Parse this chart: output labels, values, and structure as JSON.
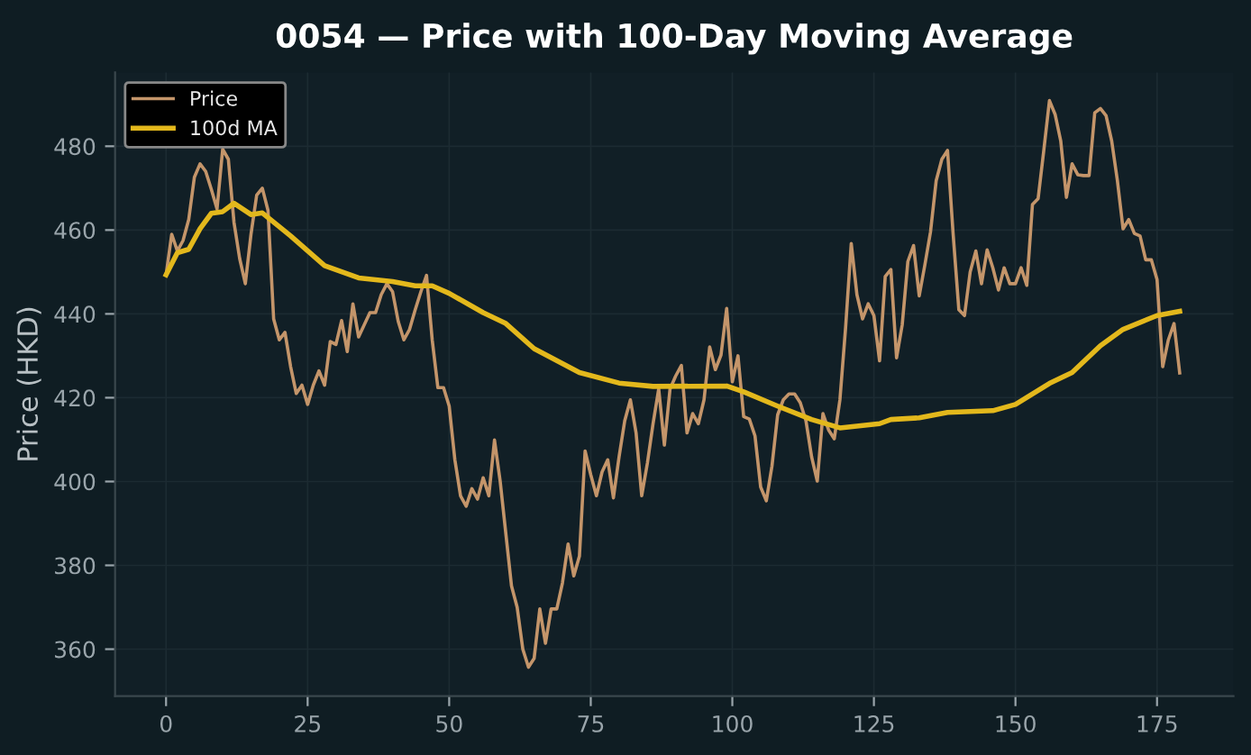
{
  "chart_data": {
    "type": "line",
    "title": "0054 — Price with 100-Day Moving Average",
    "ylabel": "Price (HKD)",
    "xlim": [
      -9,
      188.5
    ],
    "xticks": [
      0,
      25,
      50,
      75,
      100,
      125,
      150,
      175
    ],
    "ylim": [
      348.8,
      497.6
    ],
    "yticks": [
      360,
      380,
      400,
      420,
      440,
      460,
      480
    ],
    "grid": true,
    "legend": "top left",
    "series": [
      {
        "name": "Price",
        "color": "#c4956a",
        "x": [
          0,
          1,
          2,
          3,
          4,
          5,
          6,
          7,
          8,
          9,
          10,
          11,
          12,
          13,
          14,
          15,
          16,
          17,
          18,
          19,
          20,
          21,
          22,
          23,
          24,
          25,
          26,
          27,
          28,
          29,
          30,
          31,
          32,
          33,
          34,
          35,
          36,
          37,
          38,
          39,
          40,
          41,
          42,
          43,
          44,
          45,
          46,
          47,
          48,
          49,
          50,
          51,
          52,
          53,
          54,
          55,
          56,
          57,
          58,
          59,
          61,
          62,
          63,
          64,
          65,
          66,
          67,
          68,
          69,
          70,
          71,
          72,
          73,
          74,
          75,
          76,
          77,
          78,
          79,
          80,
          81,
          82,
          83,
          84,
          85,
          86,
          87,
          88,
          89,
          90,
          91,
          92,
          93,
          94,
          95,
          96,
          97,
          98,
          99,
          100,
          101,
          102,
          103,
          104,
          105,
          106,
          107,
          108,
          109,
          110,
          111,
          112,
          113,
          114,
          115,
          116,
          117,
          118,
          119,
          120,
          121,
          122,
          123,
          124,
          125,
          126,
          127,
          128,
          129,
          130,
          131,
          132,
          133,
          134,
          135,
          136,
          137,
          138,
          139,
          140,
          141,
          142,
          143,
          144,
          145,
          146,
          147,
          148,
          149,
          150,
          151,
          152,
          153,
          154,
          155,
          156,
          157,
          158,
          159,
          160,
          161,
          162,
          163,
          164,
          165,
          166,
          167,
          168,
          169,
          170,
          171,
          172,
          173,
          174,
          175,
          176,
          177,
          178,
          179
        ],
        "values": [
          449.3,
          459,
          455,
          457.5,
          462.5,
          472.6,
          475.8,
          474,
          469.7,
          465,
          479.3,
          476.9,
          461.8,
          453.2,
          447.2,
          459,
          468.3,
          470,
          464.7,
          438.8,
          433.8,
          435.6,
          427.4,
          421,
          423,
          418.4,
          423,
          426.4,
          423,
          433.4,
          432.7,
          438.4,
          431,
          442.4,
          434.5,
          437.4,
          440.3,
          440.3,
          444.6,
          447.2,
          445.3,
          438.2,
          433.8,
          436.3,
          441,
          445.3,
          449.2,
          433.8,
          422.4,
          422.4,
          418,
          405.2,
          396.6,
          394.1,
          398.3,
          395.8,
          400.9,
          396.6,
          409.9,
          400.1,
          375.1,
          370,
          360,
          355.7,
          357.8,
          369.6,
          361.4,
          369.6,
          369.6,
          375.8,
          385.1,
          377.5,
          382.2,
          407.3,
          401.6,
          396.6,
          402.3,
          405.2,
          396.1,
          405.9,
          414.5,
          419.5,
          411.6,
          396.6,
          404.4,
          413.8,
          422.1,
          408.7,
          422.1,
          425.2,
          427.7,
          411.6,
          416.2,
          413.8,
          419.5,
          432.1,
          426.7,
          430.2,
          441.3,
          423.8,
          430,
          415.5,
          414.9,
          410.9,
          398.7,
          395.4,
          403.7,
          415.9,
          419.5,
          420.9,
          420.9,
          418.8,
          414.5,
          405.9,
          400.1,
          416.2,
          412.3,
          410.2,
          419.5,
          436.7,
          456.8,
          444.6,
          438.8,
          442.4,
          439.6,
          428.8,
          448.9,
          450.6,
          429.5,
          437.4,
          452.5,
          456.3,
          444.3,
          451.7,
          459.6,
          471.8,
          476.9,
          479,
          458.9,
          441,
          439.6,
          450,
          455,
          447.2,
          455.3,
          451,
          445.7,
          451,
          447.2,
          447.2,
          451,
          446.8,
          466.1,
          467.5,
          479,
          490.9,
          487.6,
          481.2,
          467.8,
          475.8,
          473.2,
          473,
          473,
          488,
          489,
          487.3,
          481.2,
          471.8,
          460.3,
          462.5,
          459.2,
          458.6,
          452.9,
          452.9,
          448.2,
          427.4,
          433.8,
          437.7,
          425.9
        ]
      },
      {
        "name": "100d MA",
        "color": "#e3b81c",
        "x": [
          0,
          2,
          4,
          6,
          8,
          10,
          12,
          15,
          17,
          22,
          28,
          34,
          40,
          44,
          47,
          50,
          56,
          60,
          65,
          73,
          80,
          86,
          99,
          102,
          108,
          114,
          119,
          126,
          128,
          133,
          138,
          146,
          150,
          156,
          160,
          165,
          169,
          175,
          179
        ],
        "values": [
          449.3,
          454.6,
          455.4,
          460.3,
          464,
          464.4,
          466.4,
          463.7,
          464.1,
          458.6,
          451.5,
          448.6,
          447.7,
          446.7,
          446.7,
          444.9,
          440.3,
          437.7,
          431.7,
          426,
          423.5,
          422.7,
          422.8,
          421.4,
          418,
          414.8,
          412.8,
          413.8,
          414.8,
          415.2,
          416.5,
          416.9,
          418.4,
          423.4,
          426,
          432.4,
          436.3,
          439.6,
          440.6
        ]
      }
    ]
  }
}
